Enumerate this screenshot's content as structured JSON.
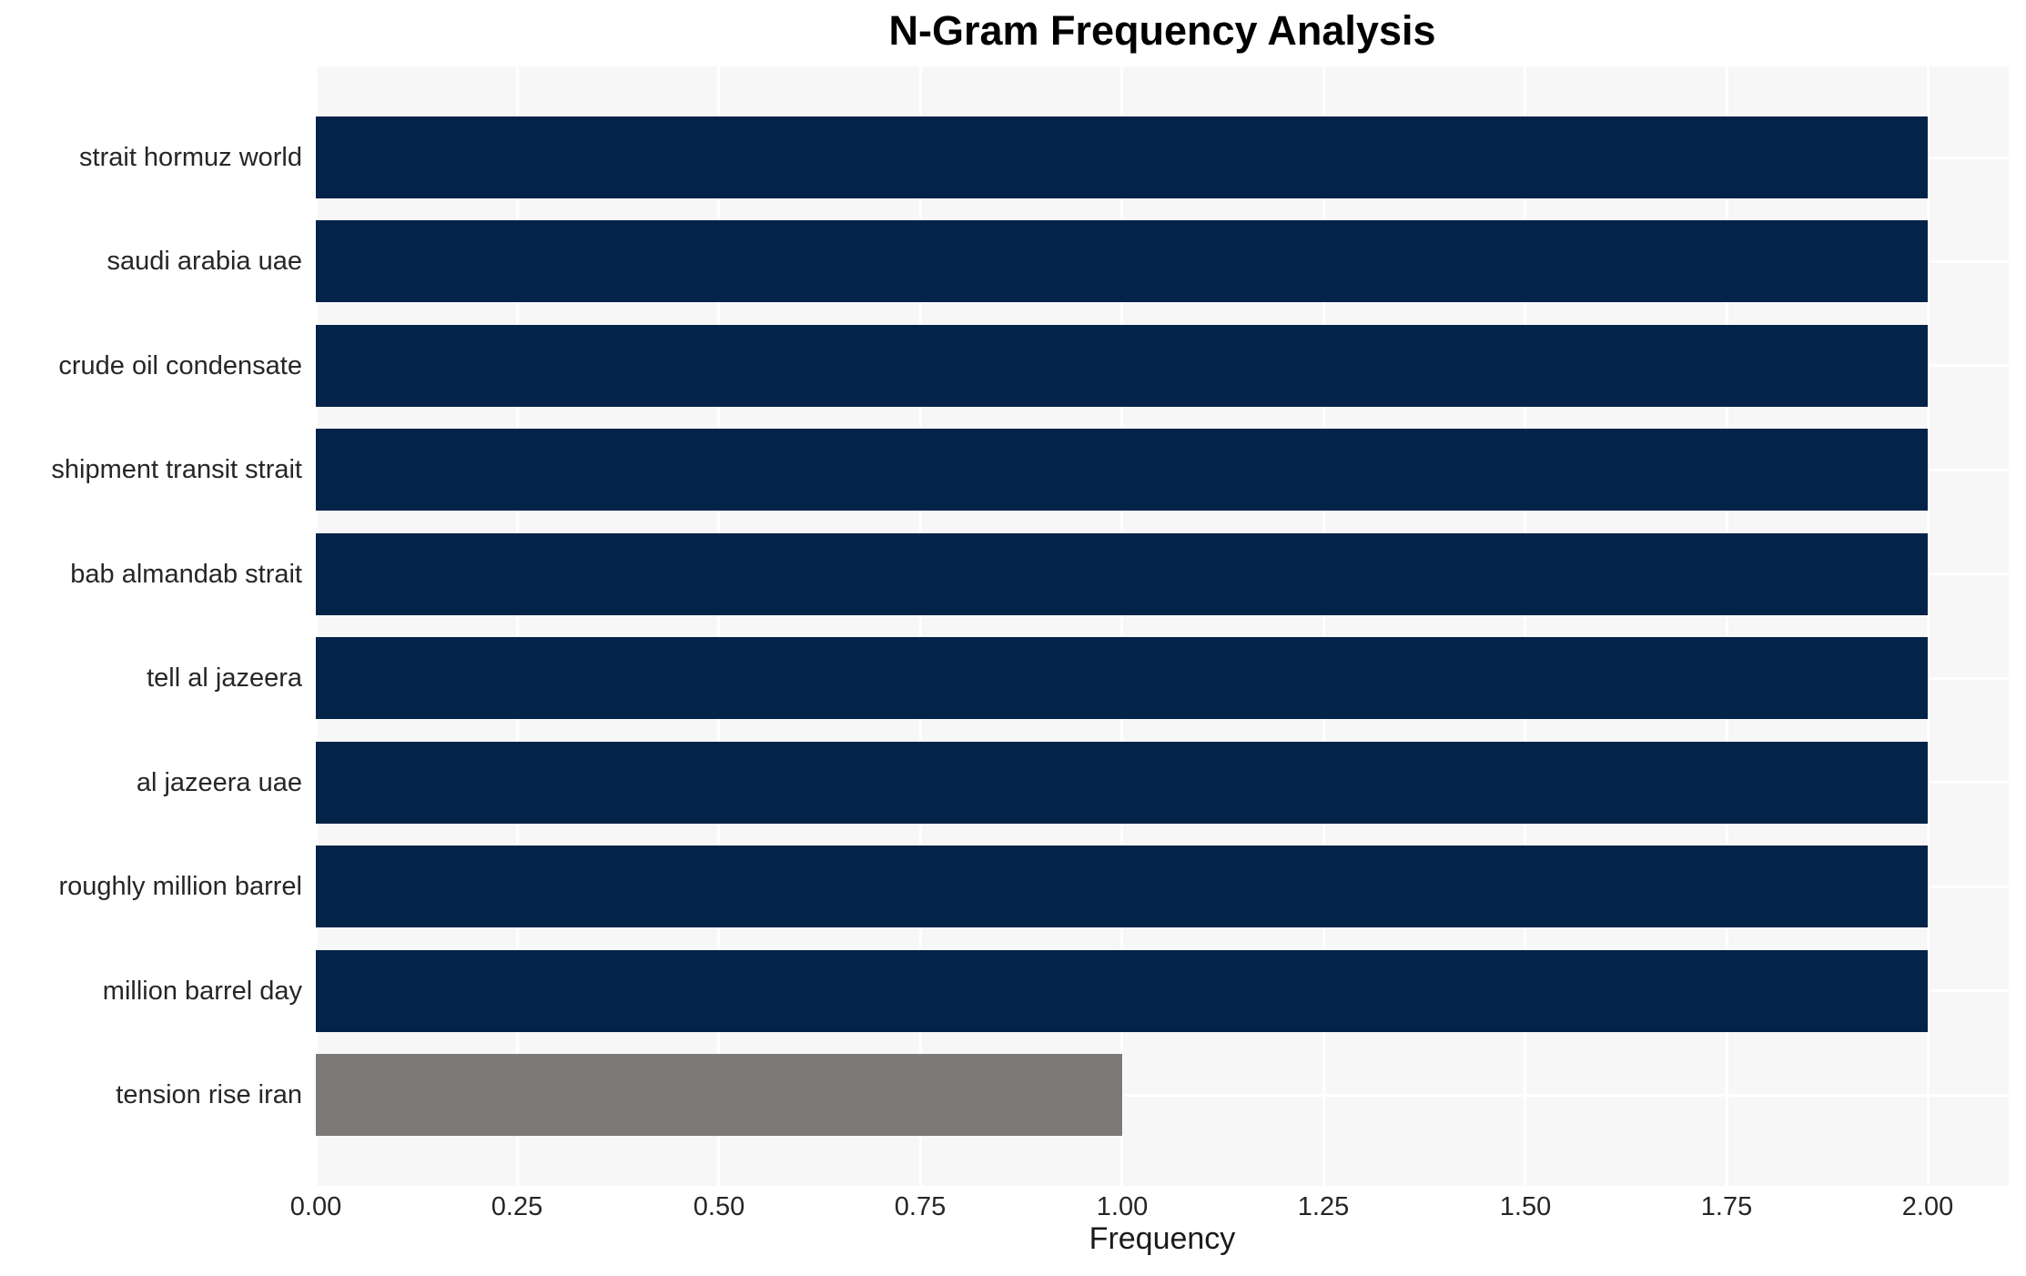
{
  "chart_data": {
    "type": "bar",
    "orientation": "horizontal",
    "title": "N-Gram Frequency Analysis",
    "xlabel": "Frequency",
    "ylabel": "",
    "categories": [
      "strait hormuz world",
      "saudi arabia uae",
      "crude oil condensate",
      "shipment transit strait",
      "bab almandab strait",
      "tell al jazeera",
      "al jazeera uae",
      "roughly million barrel",
      "million barrel day",
      "tension rise iran"
    ],
    "values": [
      2,
      2,
      2,
      2,
      2,
      2,
      2,
      2,
      2,
      1
    ],
    "bar_colors": [
      "#032349",
      "#032349",
      "#032349",
      "#032349",
      "#032349",
      "#032349",
      "#032349",
      "#032349",
      "#032349",
      "#7b7a76"
    ],
    "xlim": [
      0,
      2.1
    ],
    "xticks": [
      0,
      0.25,
      0.5,
      0.75,
      1.0,
      1.25,
      1.5,
      1.75,
      2.0
    ],
    "xtick_labels": [
      "0.00",
      "0.25",
      "0.50",
      "0.75",
      "1.00",
      "1.25",
      "1.50",
      "1.75",
      "2.00"
    ],
    "grid": true,
    "legend": false,
    "colors": {
      "bar_primary": "#032349",
      "bar_highlight": "#7b7a76",
      "plot_background": "#f7f7f7",
      "gridline": "#ffffff",
      "tick_text": "#262626",
      "title_text": "#000000"
    }
  }
}
